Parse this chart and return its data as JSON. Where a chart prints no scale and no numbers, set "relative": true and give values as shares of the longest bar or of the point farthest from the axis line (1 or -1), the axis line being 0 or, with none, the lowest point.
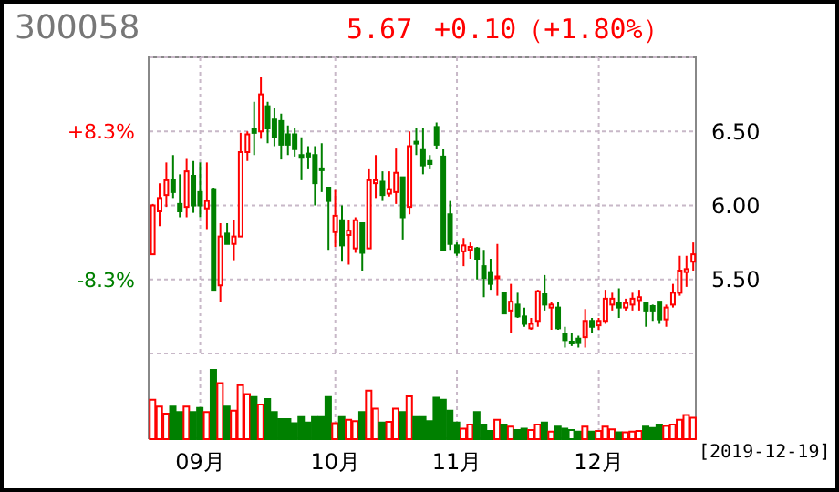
{
  "chart_data": [
    {
      "type": "candlestick",
      "title": "300058",
      "annotations": [
        "5.67",
        "+0.10（+1.80%）"
      ],
      "ohlc": [
        [
          5.67,
          6.01,
          5.67,
          6.0
        ],
        [
          5.96,
          6.15,
          5.86,
          6.05
        ],
        [
          6.07,
          6.29,
          5.99,
          6.17
        ],
        [
          6.17,
          6.34,
          6.05,
          6.09
        ],
        [
          6.01,
          6.21,
          5.92,
          5.96
        ],
        [
          5.99,
          6.32,
          5.92,
          6.23
        ],
        [
          6.2,
          6.3,
          5.95,
          6.0
        ],
        [
          6.09,
          6.29,
          5.92,
          6.0
        ],
        [
          5.98,
          6.29,
          5.84,
          6.03
        ],
        [
          6.11,
          6.12,
          5.43,
          5.43
        ],
        [
          5.46,
          5.88,
          5.35,
          5.79
        ],
        [
          5.81,
          5.88,
          5.74,
          5.74
        ],
        [
          5.74,
          5.9,
          5.63,
          5.79
        ],
        [
          5.79,
          6.49,
          5.79,
          6.36
        ],
        [
          6.36,
          6.5,
          6.3,
          6.48
        ],
        [
          6.52,
          6.7,
          6.34,
          6.49
        ],
        [
          6.5,
          6.87,
          6.45,
          6.75
        ],
        [
          6.67,
          6.7,
          6.42,
          6.52
        ],
        [
          6.58,
          6.66,
          6.4,
          6.46
        ],
        [
          6.57,
          6.62,
          6.31,
          6.41
        ],
        [
          6.48,
          6.54,
          6.34,
          6.41
        ],
        [
          6.48,
          6.52,
          6.33,
          6.38
        ],
        [
          6.34,
          6.46,
          6.17,
          6.33
        ],
        [
          6.35,
          6.4,
          6.25,
          6.33
        ],
        [
          6.34,
          6.4,
          6.0,
          6.15
        ],
        [
          6.25,
          6.42,
          6.09,
          6.24
        ],
        [
          6.12,
          6.12,
          5.7,
          6.03
        ],
        [
          5.82,
          6.11,
          5.72,
          5.93
        ],
        [
          5.9,
          6.0,
          5.62,
          5.73
        ],
        [
          5.8,
          5.9,
          5.6,
          5.83
        ],
        [
          5.71,
          5.92,
          5.68,
          5.9
        ],
        [
          5.88,
          5.88,
          5.56,
          5.68
        ],
        [
          5.71,
          6.25,
          5.71,
          6.17
        ],
        [
          6.15,
          6.34,
          6.05,
          6.17
        ],
        [
          6.16,
          6.23,
          6.03,
          6.07
        ],
        [
          6.08,
          6.23,
          6.06,
          6.11
        ],
        [
          6.09,
          6.39,
          6.01,
          6.22
        ],
        [
          6.19,
          6.19,
          5.77,
          5.92
        ],
        [
          5.99,
          6.5,
          5.94,
          6.4
        ],
        [
          6.43,
          6.52,
          6.34,
          6.42
        ],
        [
          6.38,
          6.52,
          6.21,
          6.27
        ],
        [
          6.3,
          6.34,
          6.25,
          6.28
        ],
        [
          6.53,
          6.56,
          6.38,
          6.41
        ],
        [
          6.33,
          6.38,
          5.7,
          5.7
        ],
        [
          5.94,
          6.03,
          5.7,
          5.74
        ],
        [
          5.73,
          5.75,
          5.66,
          5.68
        ],
        [
          5.69,
          5.78,
          5.59,
          5.73
        ],
        [
          5.7,
          5.75,
          5.64,
          5.72
        ],
        [
          5.71,
          5.72,
          5.5,
          5.64
        ],
        [
          5.59,
          5.7,
          5.38,
          5.51
        ],
        [
          5.55,
          5.64,
          5.43,
          5.47
        ],
        [
          5.51,
          5.74,
          5.39,
          5.52
        ],
        [
          5.41,
          5.41,
          5.27,
          5.27
        ],
        [
          5.29,
          5.47,
          5.14,
          5.35
        ],
        [
          5.33,
          5.41,
          5.24,
          5.25
        ],
        [
          5.25,
          5.31,
          5.18,
          5.2
        ],
        [
          5.17,
          5.24,
          5.16,
          5.2
        ],
        [
          5.22,
          5.43,
          5.18,
          5.42
        ],
        [
          5.4,
          5.53,
          5.29,
          5.33
        ],
        [
          5.31,
          5.35,
          5.16,
          5.33
        ],
        [
          5.31,
          5.35,
          5.16,
          5.17
        ],
        [
          5.13,
          5.18,
          5.04,
          5.09
        ],
        [
          5.08,
          5.14,
          5.05,
          5.08
        ],
        [
          5.1,
          5.12,
          5.04,
          5.07
        ],
        [
          5.11,
          5.3,
          5.04,
          5.22
        ],
        [
          5.22,
          5.24,
          5.14,
          5.18
        ],
        [
          5.19,
          5.24,
          5.16,
          5.22
        ],
        [
          5.22,
          5.43,
          5.2,
          5.37
        ],
        [
          5.33,
          5.41,
          5.29,
          5.37
        ],
        [
          5.34,
          5.44,
          5.24,
          5.31
        ],
        [
          5.31,
          5.37,
          5.29,
          5.34
        ],
        [
          5.33,
          5.41,
          5.29,
          5.37
        ],
        [
          5.36,
          5.43,
          5.29,
          5.38
        ],
        [
          5.34,
          5.34,
          5.18,
          5.29
        ],
        [
          5.32,
          5.33,
          5.22,
          5.29
        ],
        [
          5.35,
          5.35,
          5.2,
          5.23
        ],
        [
          5.23,
          5.33,
          5.18,
          5.31
        ],
        [
          5.33,
          5.47,
          5.31,
          5.41
        ],
        [
          5.41,
          5.66,
          5.39,
          5.56
        ],
        [
          5.55,
          5.66,
          5.45,
          5.57
        ],
        [
          5.62,
          5.75,
          5.56,
          5.67
        ]
      ],
      "colors": [
        "#ff0000",
        "#ff0000",
        "#ff0000",
        "#008000",
        "#008000",
        "#ff0000",
        "#008000",
        "#008000",
        "#ff0000",
        "#008000",
        "#ff0000",
        "#008000",
        "#ff0000",
        "#ff0000",
        "#ff0000",
        "#008000",
        "#ff0000",
        "#008000",
        "#008000",
        "#008000",
        "#008000",
        "#008000",
        "#008000",
        "#008000",
        "#008000",
        "#008000",
        "#008000",
        "#ff0000",
        "#008000",
        "#ff0000",
        "#ff0000",
        "#008000",
        "#ff0000",
        "#ff0000",
        "#008000",
        "#ff0000",
        "#ff0000",
        "#008000",
        "#ff0000",
        "#008000",
        "#008000",
        "#008000",
        "#008000",
        "#008000",
        "#008000",
        "#008000",
        "#ff0000",
        "#ff0000",
        "#008000",
        "#008000",
        "#008000",
        "#ff0000",
        "#008000",
        "#ff0000",
        "#008000",
        "#008000",
        "#ff0000",
        "#ff0000",
        "#008000",
        "#ff0000",
        "#008000",
        "#008000",
        "#008000",
        "#008000",
        "#ff0000",
        "#008000",
        "#ff0000",
        "#ff0000",
        "#ff0000",
        "#008000",
        "#ff0000",
        "#ff0000",
        "#ff0000",
        "#008000",
        "#008000",
        "#008000",
        "#ff0000",
        "#ff0000",
        "#ff0000",
        "#ff0000",
        "#ff0000"
      ],
      "ylim": [
        5.0,
        7.0
      ],
      "yticks": [
        {
          "value": 5.5,
          "label": "5.50"
        },
        {
          "value": 6.0,
          "label": "6.00"
        },
        {
          "value": 6.5,
          "label": "6.50"
        }
      ],
      "y2lim": [
        -16.6,
        16.6
      ],
      "y2ticks": [
        {
          "value": -8.3,
          "label": "-8.3%"
        },
        {
          "value": 8.3,
          "label": "+8.3%"
        }
      ],
      "grid": true,
      "tick_labels": "y"
    },
    {
      "type": "bar",
      "relative": true,
      "tick_labels": "x",
      "grid": "x",
      "annotations": [
        "[2019-12-19]"
      ],
      "categories": [
        null,
        null,
        null,
        null,
        null,
        null,
        null,
        "09月",
        null,
        null,
        null,
        null,
        null,
        null,
        null,
        null,
        null,
        null,
        null,
        null,
        null,
        null,
        null,
        null,
        null,
        null,
        null,
        "10月",
        null,
        null,
        null,
        null,
        null,
        null,
        null,
        null,
        null,
        null,
        null,
        null,
        null,
        null,
        null,
        null,
        null,
        "11月",
        null,
        null,
        null,
        null,
        null,
        null,
        null,
        null,
        null,
        null,
        null,
        null,
        null,
        null,
        null,
        null,
        null,
        null,
        null,
        null,
        "12月",
        null,
        null,
        null,
        null,
        null,
        null,
        null,
        null,
        null,
        null,
        null,
        null,
        null,
        null
      ],
      "values": [
        0.57,
        0.47,
        0.37,
        0.47,
        0.39,
        0.47,
        0.39,
        0.45,
        0.39,
        1,
        0.81,
        0.47,
        0.41,
        0.78,
        0.65,
        0.61,
        0.5,
        0.58,
        0.39,
        0.29,
        0.29,
        0.23,
        0.32,
        0.24,
        0.32,
        0.32,
        0.61,
        0.23,
        0.32,
        0.28,
        0.26,
        0.39,
        0.7,
        0.44,
        0.24,
        0.25,
        0.44,
        0.39,
        0.62,
        0.32,
        0.32,
        0.26,
        0.6,
        0.57,
        0.41,
        0.24,
        0.15,
        0.21,
        0.39,
        0.21,
        0.12,
        0.28,
        0.21,
        0.18,
        0.13,
        0.15,
        0.13,
        0.21,
        0.24,
        0.11,
        0.18,
        0.15,
        0.13,
        0.11,
        0.18,
        0.11,
        0.12,
        0.18,
        0.14,
        0.1,
        0.1,
        0.11,
        0.12,
        0.18,
        0.16,
        0.21,
        0.19,
        0.21,
        0.28,
        0.35,
        0.31
      ],
      "colors": [
        "#ff0000",
        "#ff0000",
        "#ff0000",
        "#008000",
        "#008000",
        "#ff0000",
        "#008000",
        "#008000",
        "#ff0000",
        "#008000",
        "#ff0000",
        "#008000",
        "#ff0000",
        "#ff0000",
        "#ff0000",
        "#008000",
        "#ff0000",
        "#008000",
        "#008000",
        "#008000",
        "#008000",
        "#008000",
        "#008000",
        "#008000",
        "#008000",
        "#008000",
        "#008000",
        "#ff0000",
        "#008000",
        "#ff0000",
        "#ff0000",
        "#008000",
        "#ff0000",
        "#ff0000",
        "#008000",
        "#ff0000",
        "#ff0000",
        "#008000",
        "#ff0000",
        "#008000",
        "#008000",
        "#008000",
        "#008000",
        "#008000",
        "#008000",
        "#008000",
        "#ff0000",
        "#ff0000",
        "#008000",
        "#008000",
        "#008000",
        "#ff0000",
        "#008000",
        "#ff0000",
        "#008000",
        "#008000",
        "#ff0000",
        "#ff0000",
        "#008000",
        "#ff0000",
        "#008000",
        "#008000",
        "#008000",
        "#008000",
        "#ff0000",
        "#008000",
        "#ff0000",
        "#ff0000",
        "#ff0000",
        "#008000",
        "#ff0000",
        "#ff0000",
        "#ff0000",
        "#008000",
        "#008000",
        "#008000",
        "#ff0000",
        "#ff0000",
        "#ff0000",
        "#ff0000",
        "#ff0000"
      ]
    }
  ]
}
